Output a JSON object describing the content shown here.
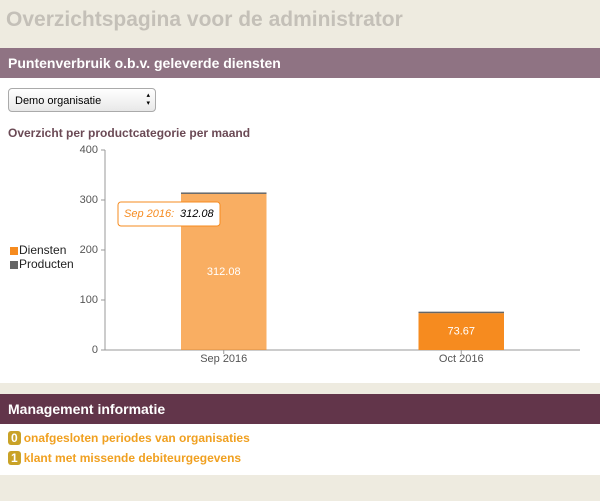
{
  "header": {
    "title": "Overzichtspagina voor de administrator"
  },
  "sections": [
    {
      "title": "Puntenverbruik o.b.v. geleverde diensten",
      "select": {
        "value": "Demo organisatie"
      }
    },
    {
      "title": "Management informatie",
      "items": [
        {
          "count": 0,
          "text": "onafgesloten periodes van organisaties"
        },
        {
          "count": 1,
          "text": "klant met missende debiteurgegevens"
        }
      ]
    }
  ],
  "chart_data": {
    "type": "bar",
    "stacked": true,
    "title": "Overzicht per productcategorie per maand",
    "categories": [
      "Sep 2016",
      "Oct 2016"
    ],
    "series": [
      {
        "name": "Diensten",
        "color": "#f68b1f",
        "values": [
          312.08,
          73.67
        ]
      },
      {
        "name": "Producten",
        "color": "#666666",
        "values": [
          3,
          3
        ]
      }
    ],
    "ylim": [
      0,
      400
    ],
    "yticks": [
      0,
      100,
      200,
      300,
      400
    ],
    "grid": false,
    "legend": "left",
    "tooltip": {
      "label": "Sep 2016:",
      "value": 312.08
    }
  }
}
